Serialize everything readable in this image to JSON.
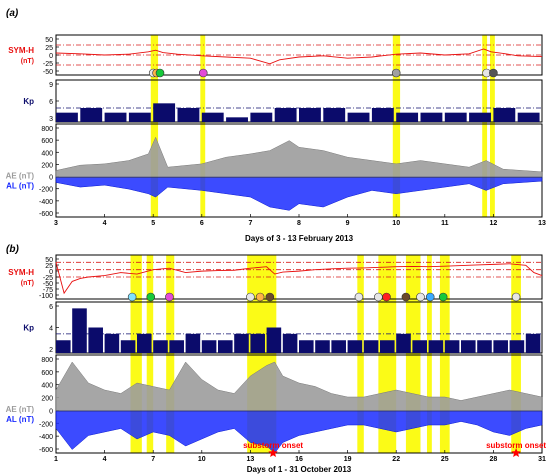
{
  "colors": {
    "symh": "#e81010",
    "kp": "#0b0b6b",
    "ae": "#9c9c9c",
    "al": "#1a2cff",
    "highlight": "#fbfb17",
    "ref_line": "#d81b1b",
    "kp_ref_line": "#0b0b6b",
    "onset_star": "#ff0000"
  },
  "chart_data": [
    {
      "type": "line",
      "panel_label": "(a)",
      "xlabel": "Days of 3 - 13 February 2013",
      "x_range": [
        3,
        13
      ],
      "x_ticks": [
        3,
        4,
        5,
        6,
        7,
        8,
        9,
        10,
        11,
        12,
        13
      ],
      "highlight_bands": [
        [
          4.95,
          5.1
        ],
        [
          5.97,
          6.07
        ],
        [
          9.93,
          10.08
        ],
        [
          11.77,
          11.87
        ],
        [
          11.93,
          12.03
        ]
      ],
      "rows": [
        {
          "ylabel": "SYM-H",
          "unit": "(nT)",
          "ylim": [
            -50,
            50
          ],
          "ticks": [
            "50",
            "25",
            "0",
            "-25",
            "-50"
          ],
          "ref_levels": [
            25,
            0,
            -25
          ],
          "series": [
            {
              "x": [
                3,
                3.5,
                4,
                4.5,
                4.9,
                5.05,
                5.2,
                5.5,
                6,
                6.5,
                7,
                7.4,
                7.6,
                8,
                8.5,
                9,
                9.5,
                10,
                10.5,
                11,
                11.5,
                11.8,
                11.95,
                12.2,
                12.5,
                13
              ],
              "values": [
                5,
                3,
                0,
                2,
                8,
                12,
                6,
                2,
                -2,
                -5,
                -8,
                -22,
                -12,
                -5,
                -2,
                -8,
                -5,
                2,
                5,
                0,
                3,
                15,
                8,
                4,
                -2,
                -4
              ]
            }
          ],
          "markers": [
            {
              "x": 5.0,
              "color": "#e6e6e6"
            },
            {
              "x": 5.07,
              "color": "#ffb347"
            },
            {
              "x": 5.14,
              "color": "#16c93a"
            },
            {
              "x": 6.03,
              "color": "#e34bd6"
            },
            {
              "x": 10.0,
              "color": "#a0a0a0"
            },
            {
              "x": 11.86,
              "color": "#e6e6e6"
            },
            {
              "x": 12.0,
              "color": "#555555"
            }
          ]
        },
        {
          "ylabel": "Kp",
          "ylim": [
            0,
            9
          ],
          "ticks": [
            "9",
            "6",
            "3"
          ],
          "ref_levels": [
            3
          ],
          "series": [
            {
              "x": [
                3,
                3.5,
                4,
                4.5,
                5,
                5.5,
                6,
                6.5,
                7,
                7.5,
                8,
                8.5,
                9,
                9.5,
                10,
                10.5,
                11,
                11.5,
                12,
                12.5
              ],
              "values": [
                2,
                3,
                2,
                2,
                4,
                3,
                2,
                1,
                2,
                3,
                3,
                3,
                2,
                3,
                2,
                2,
                2,
                2,
                3,
                2
              ]
            }
          ]
        },
        {
          "ylabel": "AE (nT)",
          "ylabel2": "AL (nT)",
          "ylim": [
            -600,
            800
          ],
          "ticks": [
            "800",
            "600",
            "400",
            "200",
            "0",
            "-200",
            "-400",
            "-600"
          ],
          "series": [
            {
              "name": "AE (nT)",
              "x": [
                3,
                3.5,
                4,
                4.5,
                4.9,
                5.05,
                5.3,
                6,
                6.5,
                7,
                7.4,
                7.8,
                8,
                8.5,
                9,
                9.5,
                10,
                10.5,
                11,
                11.5,
                11.85,
                12.2,
                13
              ],
              "values": [
                100,
                180,
                200,
                250,
                350,
                600,
                150,
                200,
                300,
                350,
                400,
                550,
                450,
                400,
                300,
                250,
                200,
                250,
                200,
                150,
                250,
                120,
                80
              ]
            },
            {
              "name": "AL (nT)",
              "x": [
                3,
                3.5,
                4,
                4.5,
                4.9,
                5.05,
                5.3,
                6,
                6.5,
                7,
                7.4,
                7.8,
                8,
                8.5,
                9,
                9.5,
                10,
                10.5,
                11,
                11.5,
                11.85,
                12.2,
                13
              ],
              "values": [
                -80,
                -150,
                -120,
                -180,
                -250,
                -300,
                -150,
                -200,
                -250,
                -300,
                -450,
                -500,
                -400,
                -450,
                -300,
                -200,
                -250,
                -200,
                -150,
                -100,
                -200,
                -100,
                -60
              ]
            }
          ]
        }
      ]
    },
    {
      "type": "line",
      "panel_label": "(b)",
      "xlabel": "Days of 1 - 31 October 2013",
      "x_range": [
        1,
        31
      ],
      "x_ticks": [
        1,
        4,
        7,
        10,
        13,
        16,
        19,
        22,
        25,
        28,
        31
      ],
      "highlight_bands": [
        [
          5.6,
          6.3
        ],
        [
          6.6,
          7.0
        ],
        [
          7.8,
          8.3
        ],
        [
          12.8,
          14.6
        ],
        [
          19.6,
          20.0
        ],
        [
          20.9,
          22.0
        ],
        [
          22.6,
          23.5
        ],
        [
          23.9,
          24.2
        ],
        [
          24.7,
          25.3
        ],
        [
          29.1,
          29.7
        ]
      ],
      "annotations": [
        {
          "text": "substorm onset",
          "x": 14.4
        },
        {
          "text": "substorm onset",
          "x": 29.4
        }
      ],
      "rows": [
        {
          "ylabel": "SYM-H",
          "unit": "(nT)",
          "ylim": [
            -100,
            50
          ],
          "ticks": [
            "50",
            "25",
            "0",
            "-25",
            "-50",
            "-75",
            "-100"
          ],
          "ref_levels": [
            25,
            0,
            -25
          ],
          "series": [
            {
              "x": [
                1,
                1.5,
                2,
                2.5,
                3,
                4,
                5,
                6,
                7,
                8,
                9,
                10,
                11,
                12,
                13,
                14,
                14.5,
                15,
                16,
                17,
                18,
                19,
                20,
                21,
                22,
                23,
                24,
                25,
                26,
                27,
                28,
                29,
                30,
                30.5,
                31
              ],
              "values": [
                25,
                -80,
                -40,
                -30,
                -25,
                -20,
                -10,
                -15,
                0,
                5,
                -10,
                -5,
                -3,
                -2,
                5,
                10,
                -15,
                -8,
                -5,
                0,
                3,
                5,
                6,
                8,
                10,
                11,
                10,
                12,
                14,
                16,
                18,
                20,
                15,
                -10,
                -20
              ]
            }
          ],
          "markers": [
            {
              "x": 5.7,
              "color": "#7fe0ff"
            },
            {
              "x": 6.85,
              "color": "#16c93a"
            },
            {
              "x": 8.0,
              "color": "#e34bd6"
            },
            {
              "x": 13.0,
              "color": "#e6e6e6"
            },
            {
              "x": 13.6,
              "color": "#ffb347"
            },
            {
              "x": 14.2,
              "color": "#6b4a2a"
            },
            {
              "x": 19.7,
              "color": "#e6e6e6"
            },
            {
              "x": 20.9,
              "color": "#e6e6e6"
            },
            {
              "x": 21.4,
              "color": "#ff2020"
            },
            {
              "x": 22.6,
              "color": "#6b4a2a"
            },
            {
              "x": 23.5,
              "color": "#e6e6e6"
            },
            {
              "x": 24.1,
              "color": "#3aa9ff"
            },
            {
              "x": 24.9,
              "color": "#16c93a"
            },
            {
              "x": 29.4,
              "color": "#e6e6e6"
            }
          ]
        },
        {
          "ylabel": "Kp",
          "ylim": [
            0,
            8
          ],
          "ticks": [
            "6",
            "4",
            "2"
          ],
          "ref_levels": [
            3
          ],
          "series": [
            {
              "x": [
                1,
                2,
                3,
                4,
                5,
                6,
                7,
                8,
                9,
                10,
                11,
                12,
                13,
                14,
                15,
                16,
                17,
                18,
                19,
                20,
                21,
                22,
                23,
                24,
                25,
                26,
                27,
                28,
                29,
                30
              ],
              "values": [
                2,
                7,
                4,
                3,
                2,
                3,
                2,
                2,
                3,
                2,
                2,
                3,
                3,
                4,
                3,
                2,
                2,
                2,
                2,
                2,
                2,
                3,
                2,
                2,
                2,
                2,
                2,
                2,
                2,
                3
              ]
            }
          ]
        },
        {
          "ylabel": "AE (nT)",
          "ylabel2": "AL (nT)",
          "ylim": [
            -600,
            800
          ],
          "ticks": [
            "800",
            "600",
            "400",
            "200",
            "0",
            "-200",
            "-400",
            "-600"
          ],
          "series": [
            {
              "name": "AE (nT)",
              "x": [
                1,
                2,
                3,
                4,
                5,
                6,
                7,
                8,
                9,
                10,
                11,
                12,
                13,
                14,
                14.5,
                15,
                16,
                17,
                18,
                19,
                20,
                21,
                22,
                23,
                24,
                25,
                26,
                27,
                28,
                29,
                30,
                31
              ],
              "values": [
                300,
                700,
                400,
                300,
                250,
                400,
                350,
                300,
                700,
                450,
                300,
                250,
                500,
                650,
                700,
                500,
                400,
                350,
                250,
                200,
                200,
                250,
                300,
                250,
                200,
                200,
                150,
                200,
                250,
                300,
                250,
                200
              ]
            },
            {
              "name": "AL (nT)",
              "x": [
                1,
                2,
                3,
                4,
                5,
                6,
                7,
                8,
                9,
                10,
                11,
                12,
                13,
                14,
                14.5,
                15,
                16,
                17,
                18,
                19,
                20,
                21,
                22,
                23,
                24,
                25,
                26,
                27,
                28,
                29,
                30,
                31
              ],
              "values": [
                -250,
                -550,
                -350,
                -300,
                -250,
                -400,
                -300,
                -350,
                -500,
                -400,
                -300,
                -250,
                -450,
                -500,
                -600,
                -450,
                -350,
                -300,
                -250,
                -200,
                -200,
                -250,
                -300,
                -250,
                -200,
                -200,
                -150,
                -200,
                -300,
                -350,
                -250,
                -200
              ]
            }
          ]
        }
      ]
    }
  ]
}
